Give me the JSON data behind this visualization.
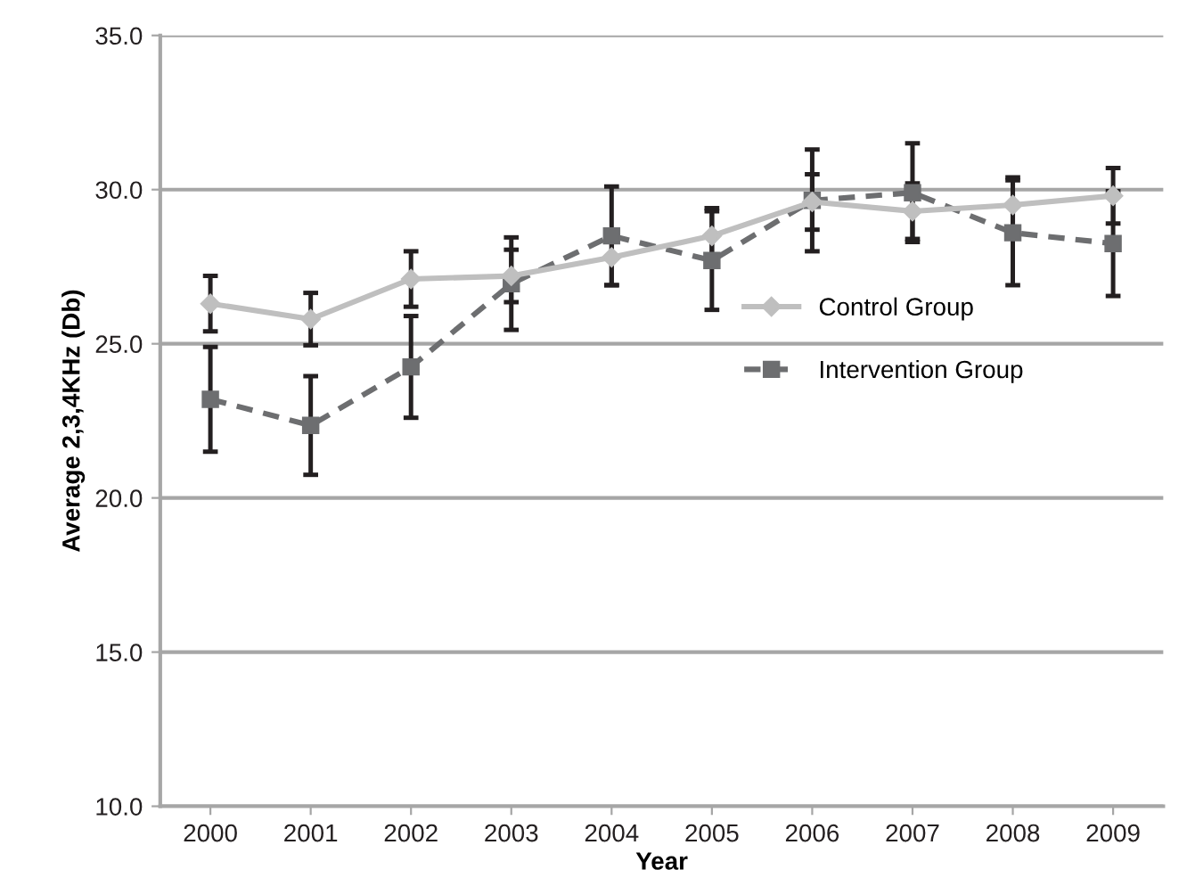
{
  "chart_data": {
    "type": "line",
    "xlabel": "Year",
    "ylabel": "Average 2,3,4KHz (Db)",
    "categories": [
      "2000",
      "2001",
      "2002",
      "2003",
      "2004",
      "2005",
      "2006",
      "2007",
      "2008",
      "2009"
    ],
    "series": [
      {
        "name": "Control Group",
        "color": "#bfbfbf",
        "marker": "diamond",
        "line_style": "solid",
        "values": [
          26.3,
          25.8,
          27.1,
          27.2,
          27.8,
          28.5,
          29.6,
          29.3,
          29.5,
          29.8
        ],
        "errors": [
          0.9,
          0.85,
          0.9,
          0.85,
          0.9,
          0.9,
          0.9,
          0.9,
          0.9,
          0.9
        ]
      },
      {
        "name": "Intervention Group",
        "color": "#6d6e70",
        "marker": "square",
        "line_style": "dashed",
        "values": [
          23.2,
          22.35,
          24.25,
          26.95,
          28.5,
          27.7,
          29.65,
          29.9,
          28.6,
          28.25
        ],
        "errors": [
          1.7,
          1.6,
          1.65,
          1.5,
          1.6,
          1.6,
          1.65,
          1.6,
          1.7,
          1.7
        ]
      }
    ],
    "ylim": [
      10,
      35
    ],
    "yticks": [
      {
        "value": 10,
        "label": "10.0"
      },
      {
        "value": 15,
        "label": "15.0"
      },
      {
        "value": 20,
        "label": "20.0"
      },
      {
        "value": 25,
        "label": "25.0"
      },
      {
        "value": 30,
        "label": "30.0"
      },
      {
        "value": 35,
        "label": "35.0"
      }
    ],
    "grid": "y",
    "legend": "right"
  }
}
